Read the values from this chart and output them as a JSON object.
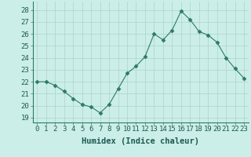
{
  "x": [
    0,
    1,
    2,
    3,
    4,
    5,
    6,
    7,
    8,
    9,
    10,
    11,
    12,
    13,
    14,
    15,
    16,
    17,
    18,
    19,
    20,
    21,
    22,
    23
  ],
  "y": [
    22.0,
    22.0,
    21.7,
    21.2,
    20.6,
    20.1,
    19.9,
    19.4,
    20.1,
    21.4,
    22.7,
    23.3,
    24.1,
    26.0,
    25.5,
    26.3,
    27.9,
    27.2,
    26.2,
    25.9,
    25.3,
    24.0,
    23.1,
    22.3
  ],
  "line_color": "#2d7a6a",
  "marker": "D",
  "markersize": 2.5,
  "linewidth": 0.8,
  "bg_color": "#cceee8",
  "grid_color": "#aad4cc",
  "xlabel": "Humidex (Indice chaleur)",
  "ylabel_ticks": [
    19,
    20,
    21,
    22,
    23,
    24,
    25,
    26,
    27,
    28
  ],
  "ylim": [
    18.6,
    28.7
  ],
  "xlim": [
    -0.5,
    23.5
  ],
  "xlabel_fontsize": 7.5,
  "tick_fontsize": 6.5
}
